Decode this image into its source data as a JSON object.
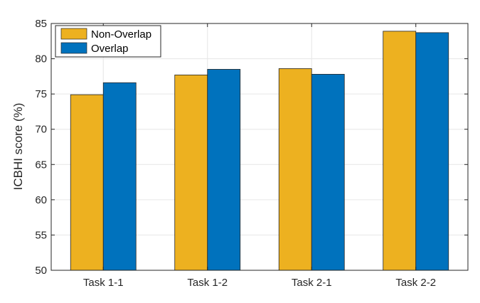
{
  "chart_data": {
    "type": "bar",
    "categories": [
      "Task 1-1",
      "Task 1-2",
      "Task 2-1",
      "Task 2-2"
    ],
    "series": [
      {
        "name": "Non-Overlap",
        "values": [
          74.9,
          77.7,
          78.6,
          83.9
        ],
        "color": "#EDB120"
      },
      {
        "name": "Overlap",
        "values": [
          76.6,
          78.5,
          77.8,
          83.7
        ],
        "color": "#0072BD"
      }
    ],
    "title": "",
    "xlabel": "",
    "ylabel": "ICBHI score (%)",
    "ylim": [
      50,
      85
    ],
    "yticks": [
      50,
      55,
      60,
      65,
      70,
      75,
      80,
      85
    ],
    "grid": true,
    "legend_position": "top-left"
  }
}
